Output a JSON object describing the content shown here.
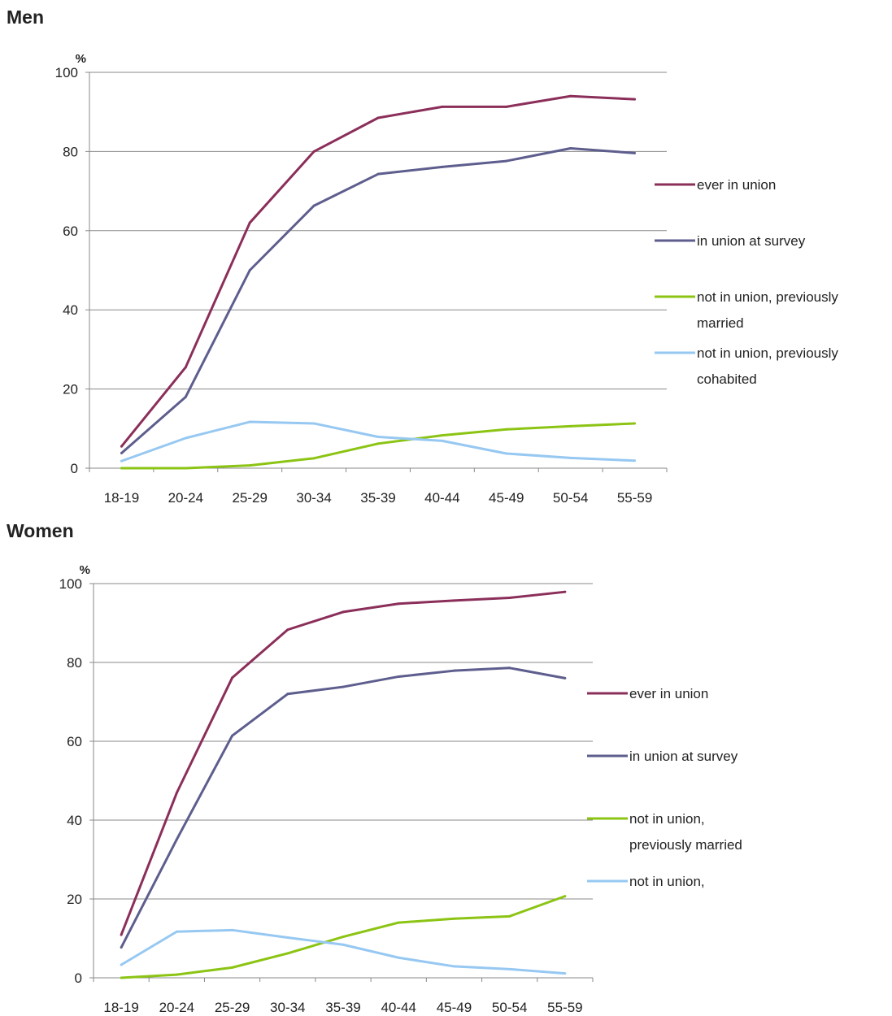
{
  "chart_data": [
    {
      "type": "line",
      "title": "Men",
      "ylabel": "%",
      "xlabel": "",
      "ylim": [
        0,
        100
      ],
      "yticks": [
        "0",
        "20",
        "40",
        "60",
        "80",
        "100"
      ],
      "categories": [
        "18-19",
        "20-24",
        "25-29",
        "30-34",
        "35-39",
        "40-44",
        "45-49",
        "50-54",
        "55-59"
      ],
      "grid": true,
      "legend_position": "right",
      "series": [
        {
          "name": "ever in union",
          "color": "#8B2F5A",
          "values": [
            5.5,
            25.5,
            62,
            80,
            88.5,
            91.3,
            91.3,
            94,
            93.2
          ]
        },
        {
          "name": "in union at survey",
          "color": "#5E5E8E",
          "values": [
            3.8,
            18,
            50,
            66.3,
            74.3,
            76.1,
            77.6,
            80.8,
            79.6
          ]
        },
        {
          "name": "not in union, previously married",
          "color": "#8CC414",
          "values": [
            0,
            0,
            0.7,
            2.5,
            6.2,
            8.3,
            9.8,
            10.6,
            11.3
          ]
        },
        {
          "name": "not in union, previously cohabited",
          "color": "#96C8F2",
          "values": [
            1.8,
            7.6,
            11.7,
            11.3,
            7.9,
            6.9,
            3.7,
            2.6,
            1.9
          ]
        }
      ]
    },
    {
      "type": "line",
      "title": "Women",
      "ylabel": "%",
      "xlabel": "",
      "ylim": [
        0,
        100
      ],
      "yticks": [
        "0",
        "20",
        "40",
        "60",
        "80",
        "100"
      ],
      "categories": [
        "18-19",
        "20-24",
        "25-29",
        "30-34",
        "35-39",
        "40-44",
        "45-49",
        "50-54",
        "55-59"
      ],
      "grid": true,
      "legend_position": "right",
      "series": [
        {
          "name": "ever in union",
          "color": "#8B2F5A",
          "values": [
            10.9,
            46.9,
            76.1,
            88.3,
            92.8,
            94.9,
            95.7,
            96.4,
            97.9
          ]
        },
        {
          "name": "in union at survey",
          "color": "#5E5E8E",
          "values": [
            7.7,
            35.1,
            61.4,
            72,
            73.8,
            76.4,
            77.9,
            78.6,
            76
          ]
        },
        {
          "name": "not in union, previously married",
          "color": "#8CC414",
          "values": [
            0,
            0.8,
            2.6,
            6.2,
            10.4,
            14,
            15,
            15.6,
            20.7
          ]
        },
        {
          "name": "not in union,",
          "color": "#96C8F2",
          "values": [
            3.3,
            11.7,
            12.1,
            10.2,
            8.4,
            5.1,
            2.9,
            2.2,
            1.1
          ]
        }
      ]
    }
  ]
}
